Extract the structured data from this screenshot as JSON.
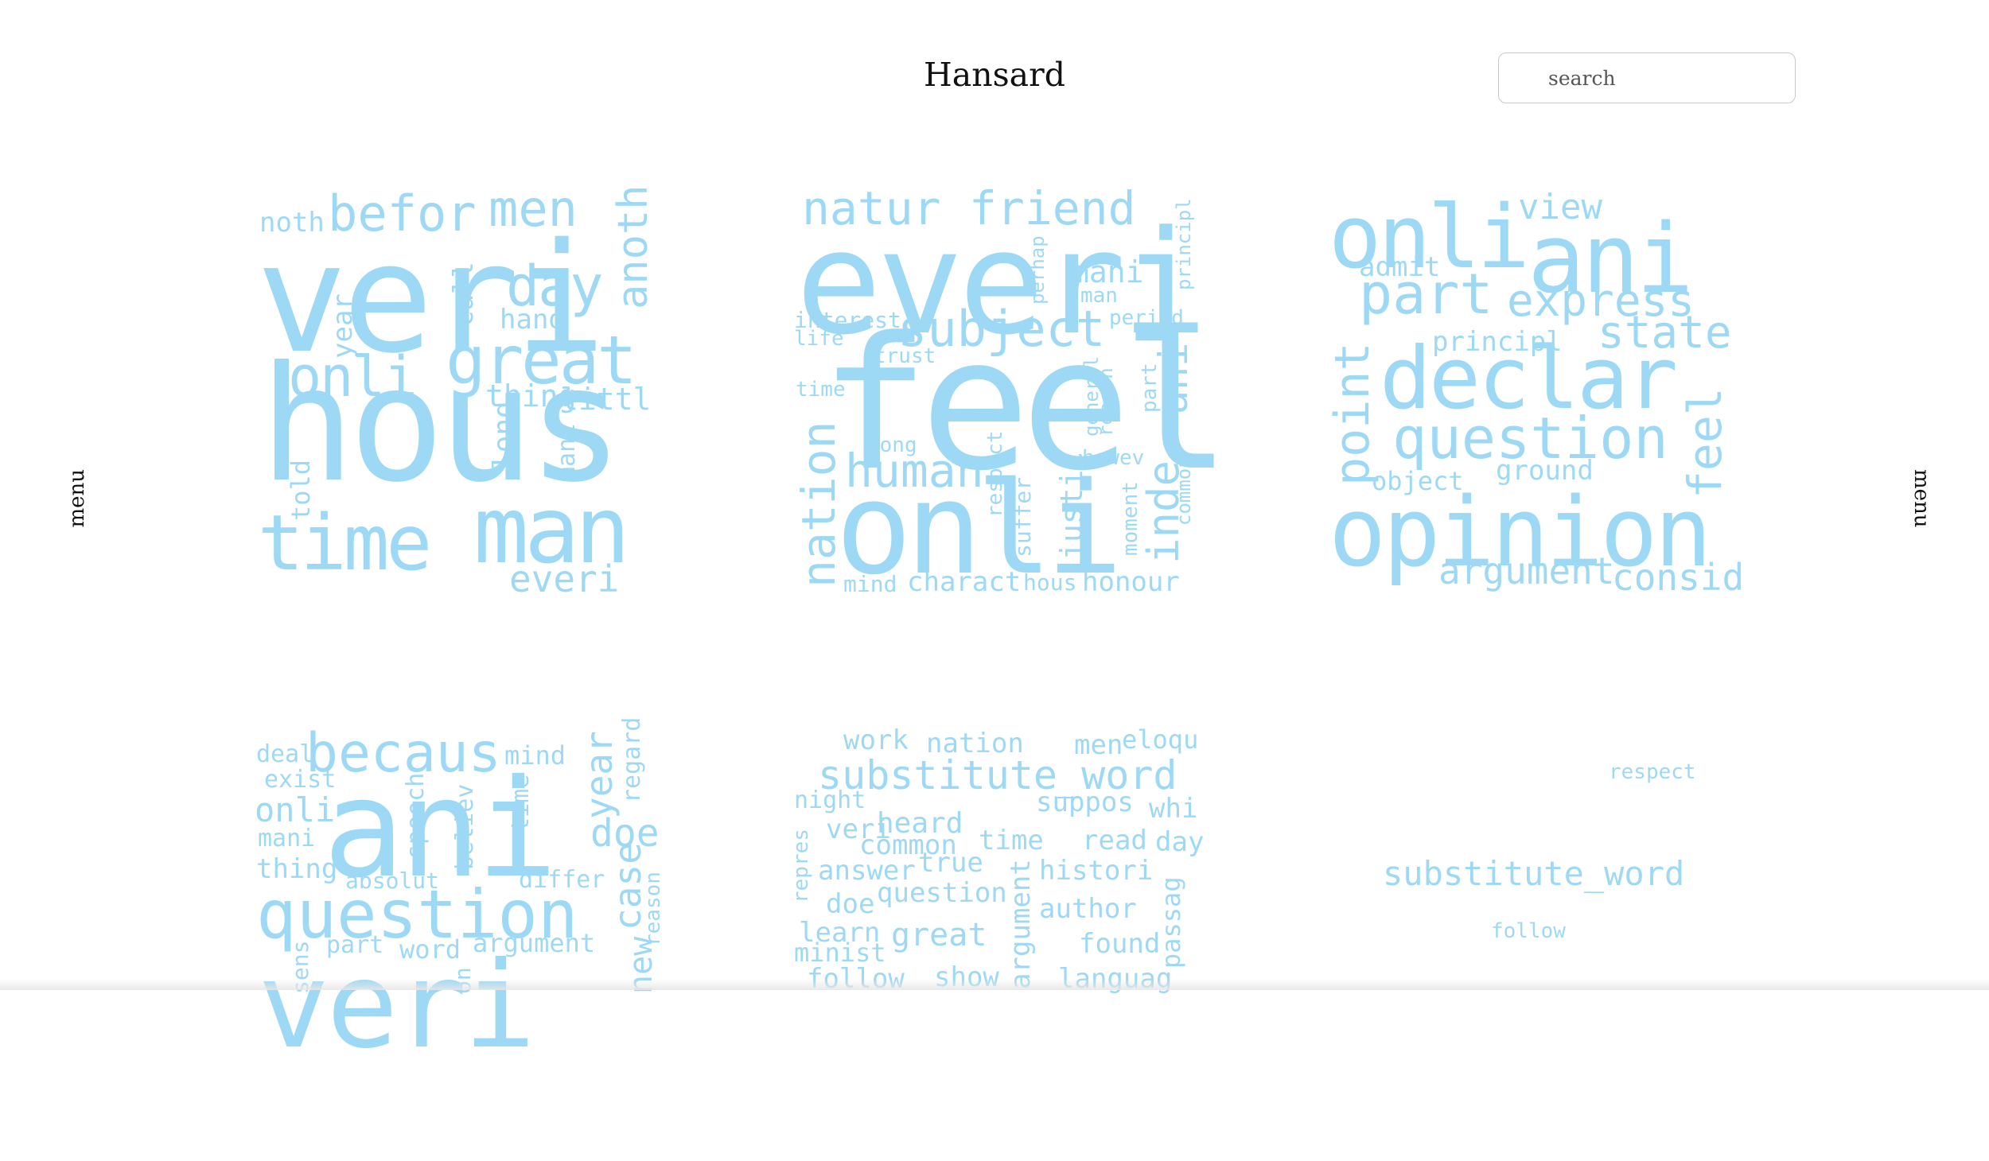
{
  "header": {
    "title": "Hansard",
    "search_placeholder": "search"
  },
  "nav": {
    "left_menu": "menu",
    "right_menu": "menu"
  },
  "colors": {
    "word": "#9dd9f5",
    "background": "#ffffff"
  },
  "clouds": {
    "c1": {
      "w1": "veri",
      "w2": "hous",
      "w3": "time",
      "w4": "man",
      "w5": "great",
      "w6": "onli",
      "w7": "day",
      "w8": "befor",
      "w9": "men",
      "w10": "noth",
      "w11": "anoth",
      "w12": "call",
      "w13": "hand",
      "w14": "year",
      "w15": "thing",
      "w16": "littl",
      "w17": "long",
      "w18": "mani",
      "w19": "told",
      "w20": "everi"
    },
    "c2": {
      "w1": "everi",
      "w2": "feel",
      "w3": "onli",
      "w4": "natur",
      "w5": "friend",
      "w6": "subject",
      "w7": "human",
      "w8": "nation",
      "w9": "charact",
      "w10": "honour",
      "w11": "inde",
      "w12": "justic",
      "w13": "mani",
      "w14": "man",
      "w15": "interest",
      "w16": "life",
      "w17": "trust",
      "w18": "time",
      "w19": "long",
      "w20": "respect",
      "w21": "suffer",
      "w22": "moment",
      "w23": "mind",
      "w24": "hous",
      "w25": "general",
      "w26": "reason",
      "w27": "howev",
      "w28": "common",
      "w29": "part",
      "w30": "ani",
      "w31": "period",
      "w32": "principl",
      "w33": "perhap"
    },
    "c3": {
      "w1": "onli",
      "w2": "ani",
      "w3": "view",
      "w4": "admit",
      "w5": "part",
      "w6": "express",
      "w7": "state",
      "w8": "principl",
      "w9": "declar",
      "w10": "point",
      "w11": "question",
      "w12": "feel",
      "w13": "object",
      "w14": "ground",
      "w15": "opinion",
      "w16": "argument",
      "w17": "consid"
    },
    "c4": {
      "w1": "ani",
      "w2": "becaus",
      "w3": "question",
      "w4": "veri",
      "w5": "deal",
      "w6": "exist",
      "w7": "onli",
      "w8": "mani",
      "w9": "thing",
      "w10": "mind",
      "w11": "year",
      "w12": "regard",
      "w13": "doe",
      "w14": "case",
      "w15": "speech",
      "w16": "believ",
      "w17": "time",
      "w18": "absolut",
      "w19": "differ",
      "w20": "part",
      "w21": "word",
      "w22": "argument",
      "w23": "reason",
      "w24": "sens",
      "w25": "new",
      "w26": "on"
    },
    "c5": {
      "w1": "work",
      "w2": "nation",
      "w3": "men",
      "w4": "eloqu",
      "w5": "substitute_word",
      "w6": "night",
      "w7": "suppos",
      "w8": "whi",
      "w9": "veri",
      "w10": "heard",
      "w11": "common",
      "w12": "time",
      "w13": "read",
      "w14": "day",
      "w15": "repres",
      "w16": "answer",
      "w17": "true",
      "w18": "histori",
      "w19": "doe",
      "w20": "question",
      "w21": "author",
      "w22": "learn",
      "w23": "great",
      "w24": "minist",
      "w25": "found",
      "w26": "follow",
      "w27": "show",
      "w28": "languag",
      "w29": "argument",
      "w30": "passag"
    },
    "c6": {
      "w1": "respect",
      "w2": "substitute_word",
      "w3": "follow"
    }
  }
}
